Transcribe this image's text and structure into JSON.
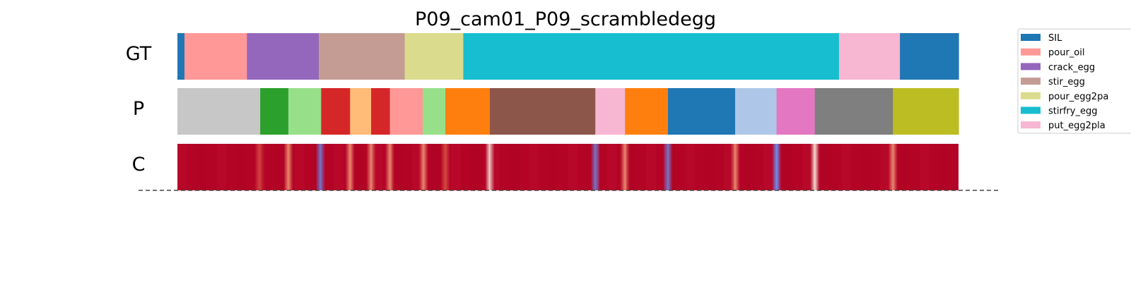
{
  "chart_data": {
    "type": "segmentation-timeline",
    "title": "P09_cam01_P09_scrambledegg",
    "rows": [
      {
        "label": "GT",
        "segments": [
          {
            "start": 0.0,
            "end": 0.009,
            "class": "SIL"
          },
          {
            "start": 0.009,
            "end": 0.089,
            "class": "pour_oil"
          },
          {
            "start": 0.089,
            "end": 0.181,
            "class": "crack_egg"
          },
          {
            "start": 0.181,
            "end": 0.291,
            "class": "stir_egg"
          },
          {
            "start": 0.291,
            "end": 0.366,
            "class": "pour_egg2pan"
          },
          {
            "start": 0.366,
            "end": 0.847,
            "class": "stirfry_egg"
          },
          {
            "start": 0.847,
            "end": 0.925,
            "class": "put_egg2plate"
          },
          {
            "start": 0.925,
            "end": 1.0,
            "class": "SIL"
          }
        ]
      },
      {
        "label": "P",
        "segments": [
          {
            "start": 0.0,
            "end": 0.106,
            "color": "#c7c7c7"
          },
          {
            "start": 0.106,
            "end": 0.142,
            "color": "#2ca02c"
          },
          {
            "start": 0.142,
            "end": 0.184,
            "color": "#98df8a"
          },
          {
            "start": 0.184,
            "end": 0.221,
            "color": "#d62728"
          },
          {
            "start": 0.221,
            "end": 0.248,
            "color": "#ffbb78"
          },
          {
            "start": 0.248,
            "end": 0.272,
            "color": "#d62728"
          },
          {
            "start": 0.272,
            "end": 0.314,
            "color": "#ff9896"
          },
          {
            "start": 0.314,
            "end": 0.343,
            "color": "#98df8a"
          },
          {
            "start": 0.343,
            "end": 0.4,
            "color": "#ff7f0e"
          },
          {
            "start": 0.4,
            "end": 0.535,
            "color": "#8c564b"
          },
          {
            "start": 0.535,
            "end": 0.573,
            "color": "#f7b6d2"
          },
          {
            "start": 0.573,
            "end": 0.628,
            "color": "#ff7f0e"
          },
          {
            "start": 0.628,
            "end": 0.714,
            "color": "#1f77b4"
          },
          {
            "start": 0.714,
            "end": 0.767,
            "color": "#aec7e8"
          },
          {
            "start": 0.767,
            "end": 0.816,
            "color": "#e377c2"
          },
          {
            "start": 0.816,
            "end": 0.916,
            "color": "#7f7f7f"
          },
          {
            "start": 0.916,
            "end": 1.0,
            "color": "#bcbd22"
          }
        ]
      },
      {
        "label": "C",
        "type": "confidence-heatmap",
        "base_color": "#b40426",
        "low_points": [
          {
            "pos": 0.105,
            "level": 0.45
          },
          {
            "pos": 0.142,
            "level": 0.55
          },
          {
            "pos": 0.183,
            "level": 0.95
          },
          {
            "pos": 0.221,
            "level": 0.55
          },
          {
            "pos": 0.248,
            "level": 0.55
          },
          {
            "pos": 0.272,
            "level": 0.5
          },
          {
            "pos": 0.315,
            "level": 0.65
          },
          {
            "pos": 0.343,
            "level": 0.35
          },
          {
            "pos": 0.4,
            "level": 0.7
          },
          {
            "pos": 0.535,
            "level": 0.9
          },
          {
            "pos": 0.573,
            "level": 0.6
          },
          {
            "pos": 0.628,
            "level": 0.95
          },
          {
            "pos": 0.714,
            "level": 0.55
          },
          {
            "pos": 0.767,
            "level": 0.95
          },
          {
            "pos": 0.816,
            "level": 0.75
          },
          {
            "pos": 0.916,
            "level": 0.65
          }
        ]
      }
    ],
    "legend": {
      "placement": "right",
      "items": [
        {
          "label": "SIL",
          "color": "#1f77b4"
        },
        {
          "label": "pour_oil",
          "color": "#ff9896"
        },
        {
          "label": "crack_egg",
          "color": "#9467bd"
        },
        {
          "label": "stir_egg",
          "color": "#c49c94"
        },
        {
          "label": "pour_egg2pa",
          "color": "#dbdb8d"
        },
        {
          "label": "stirfry_egg",
          "color": "#17becf"
        },
        {
          "label": "put_egg2pla",
          "color": "#f7b6d2"
        }
      ]
    },
    "class_colors": {
      "SIL": "#1f77b4",
      "pour_oil": "#ff9896",
      "crack_egg": "#9467bd",
      "stir_egg": "#c49c94",
      "pour_egg2pan": "#dbdb8d",
      "stirfry_egg": "#17becf",
      "put_egg2plate": "#f7b6d2"
    }
  }
}
